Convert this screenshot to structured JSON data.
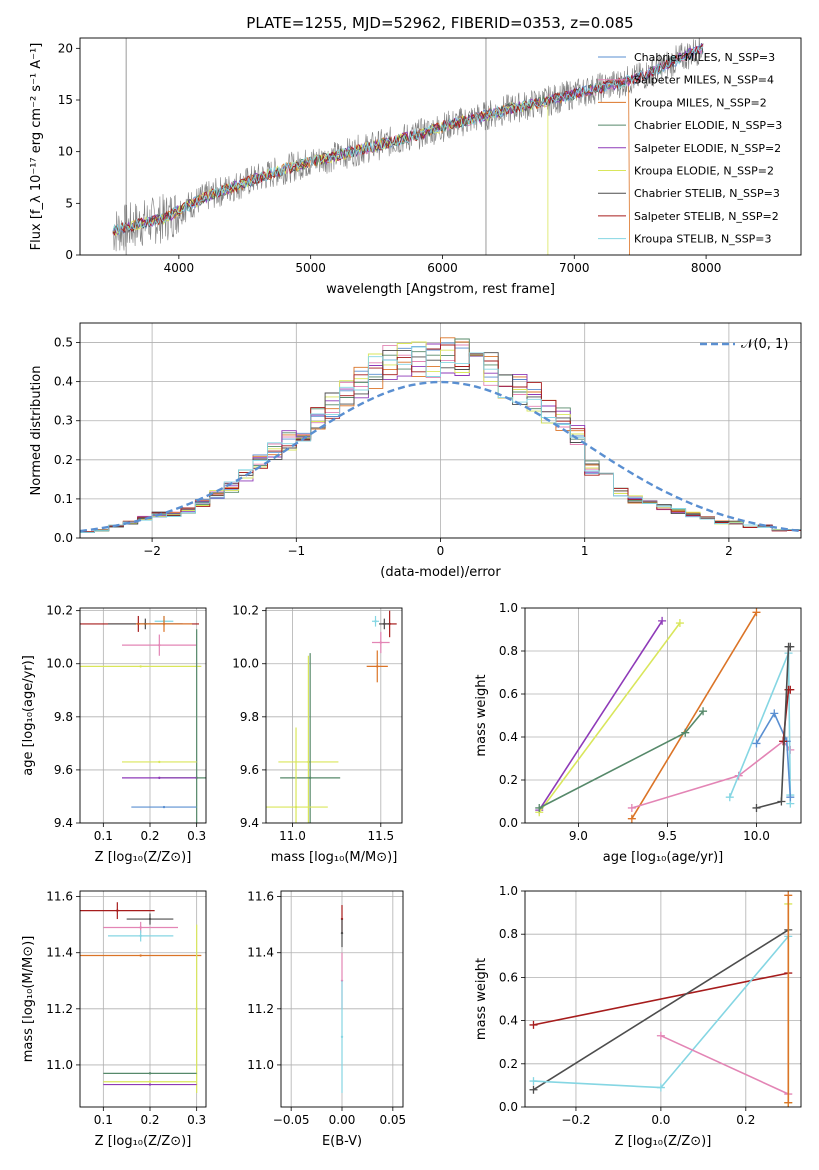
{
  "chart_data": [
    {
      "id": "spectrum",
      "type": "line",
      "title": "PLATE=1255, MJD=52962, FIBERID=0353, z=0.085",
      "xlabel": "wavelength [Angstrom, rest frame]",
      "ylabel": "Flux [f_λ 10⁻¹⁷ erg cm⁻² s⁻¹ A⁻¹]",
      "xlim": [
        3250,
        8720
      ],
      "ylim": [
        0,
        21
      ],
      "xticks": [
        "4000",
        "5000",
        "6000",
        "7000",
        "8000"
      ],
      "yticks": [
        "0",
        "5",
        "10",
        "15",
        "20"
      ],
      "grid": false,
      "legend_position": "right",
      "legend": [
        "Chabrier MILES, N_SSP=3",
        "Salpeter MILES, N_SSP=4",
        "Kroupa MILES, N_SSP=2",
        "Chabrier ELODIE, N_SSP=3",
        "Salpeter ELODIE, N_SSP=2",
        "Kroupa ELODIE, N_SSP=2",
        "Chabrier STELIB, N_SSP=3",
        "Salpeter STELIB, N_SSP=2",
        "Kroupa STELIB, N_SSP=3"
      ],
      "approx_continuum": {
        "x": [
          3500,
          3700,
          3900,
          4000,
          4200,
          4500,
          4800,
          5000,
          5200,
          5500,
          5800,
          6000,
          6300,
          6500,
          6800,
          7000,
          7300,
          7500,
          7800,
          8000
        ],
        "y": [
          2.3,
          3.0,
          3.6,
          4.3,
          5.6,
          7.0,
          8.3,
          9.0,
          9.6,
          10.6,
          11.6,
          12.4,
          13.4,
          14.1,
          14.9,
          15.6,
          16.5,
          17.2,
          19.0,
          20.2
        ]
      }
    },
    {
      "id": "residuals",
      "type": "bar",
      "xlabel": "(data-model)/error",
      "ylabel": "Normed distribution",
      "xlim": [
        -2.5,
        2.5
      ],
      "ylim": [
        0,
        0.55
      ],
      "xticks": [
        "−2",
        "−1",
        "0",
        "1",
        "2"
      ],
      "yticks": [
        "0.0",
        "0.1",
        "0.2",
        "0.3",
        "0.4",
        "0.5"
      ],
      "grid": true,
      "legend": [
        "𝒩(0, 1)"
      ],
      "legend_position": "top-right",
      "bins": [
        -2.5,
        -2.4,
        -2.3,
        -2.2,
        -2.1,
        -2.0,
        -1.9,
        -1.8,
        -1.7,
        -1.6,
        -1.5,
        -1.4,
        -1.3,
        -1.2,
        -1.1,
        -1.0,
        -0.9,
        -0.8,
        -0.7,
        -0.6,
        -0.5,
        -0.4,
        -0.3,
        -0.2,
        -0.1,
        0.0,
        0.1,
        0.2,
        0.3,
        0.4,
        0.5,
        0.6,
        0.7,
        0.8,
        0.9,
        1.0,
        1.1,
        1.2,
        1.3,
        1.4,
        1.5,
        1.6,
        1.7,
        1.8,
        1.9,
        2.0,
        2.1,
        2.2,
        2.3,
        2.4
      ],
      "approx_hist": [
        0.015,
        0.02,
        0.03,
        0.04,
        0.05,
        0.06,
        0.06,
        0.07,
        0.09,
        0.11,
        0.13,
        0.16,
        0.2,
        0.22,
        0.25,
        0.27,
        0.31,
        0.34,
        0.37,
        0.4,
        0.43,
        0.45,
        0.46,
        0.46,
        0.45,
        0.47,
        0.46,
        0.44,
        0.43,
        0.4,
        0.38,
        0.36,
        0.33,
        0.3,
        0.26,
        0.18,
        0.15,
        0.12,
        0.1,
        0.09,
        0.08,
        0.07,
        0.06,
        0.05,
        0.04,
        0.04,
        0.03,
        0.03,
        0.02,
        0.02
      ]
    },
    {
      "id": "age-vs-Z",
      "type": "scatter",
      "xlabel": "Z [log₁₀(Z/Z⊙)]",
      "ylabel": "age  [log₁₀(age/yr)]",
      "xlim": [
        0.05,
        0.32
      ],
      "ylim": [
        9.4,
        10.21
      ],
      "xticks": [
        "0.1",
        "0.2",
        "0.3"
      ],
      "yticks": [
        "9.4",
        "9.6",
        "9.8",
        "10.0",
        "10.2"
      ],
      "grid": true,
      "points": [
        {
          "z": 0.175,
          "age": 10.15,
          "xerr": 0.13,
          "yerr": 0.03
        },
        {
          "z": 0.19,
          "age": 10.15,
          "xerr": 0.08,
          "yerr": 0.02
        },
        {
          "z": 0.22,
          "age": 10.07,
          "xerr": 0.08,
          "yerr": 0.04
        },
        {
          "z": 0.23,
          "age": 10.16,
          "xerr": 0.02,
          "yerr": 0.02
        },
        {
          "z": 0.23,
          "age": 10.15,
          "xerr": 0.06,
          "yerr": 0.03
        },
        {
          "z": 0.18,
          "age": 9.99,
          "xerr": 0.13,
          "yerr": 0.0
        },
        {
          "z": 0.3,
          "age": 9.57,
          "xerr": 0.08,
          "yerr": 0.56
        },
        {
          "z": 0.22,
          "age": 9.63,
          "xerr": 0.08,
          "yerr": 0.0
        },
        {
          "z": 0.22,
          "age": 9.57,
          "xerr": 0.08,
          "yerr": 0.0
        },
        {
          "z": 0.23,
          "age": 9.46,
          "xerr": 0.07,
          "yerr": 0.0
        }
      ]
    },
    {
      "id": "age-vs-mass",
      "type": "scatter",
      "xlabel": "mass [log₁₀(M/M⊙)]",
      "ylabel": "",
      "xlim": [
        10.85,
        11.62
      ],
      "ylim": [
        9.4,
        10.21
      ],
      "xticks": [
        "11.0",
        "11.5"
      ],
      "yticks": [
        "9.4",
        "9.6",
        "9.8",
        "10.0",
        "10.2"
      ],
      "grid": true,
      "points": [
        {
          "mass": 11.55,
          "age": 10.15,
          "xerr": 0.04,
          "yerr": 0.05
        },
        {
          "mass": 11.52,
          "age": 10.15,
          "xerr": 0.03,
          "yerr": 0.02
        },
        {
          "mass": 11.5,
          "age": 10.08,
          "xerr": 0.05,
          "yerr": 0.04
        },
        {
          "mass": 11.47,
          "age": 10.16,
          "xerr": 0.02,
          "yerr": 0.02
        },
        {
          "mass": 11.48,
          "age": 9.99,
          "xerr": 0.06,
          "yerr": 0.06
        },
        {
          "mass": 11.09,
          "age": 9.63,
          "xerr": 0.17,
          "yerr": 0.4
        },
        {
          "mass": 11.1,
          "age": 9.57,
          "xerr": 0.17,
          "yerr": 0.47
        },
        {
          "mass": 11.02,
          "age": 9.46,
          "xerr": 0.18,
          "yerr": 0.3
        }
      ]
    },
    {
      "id": "weight-vs-age",
      "type": "line",
      "xlabel": "age  [log₁₀(age/yr)]",
      "ylabel": "mass weight",
      "xlim": [
        8.7,
        10.25
      ],
      "ylim": [
        0,
        1
      ],
      "xticks": [
        "9.0",
        "9.5",
        "10.0"
      ],
      "yticks": [
        "0.0",
        "0.2",
        "0.4",
        "0.6",
        "0.8",
        "1.0"
      ],
      "grid": true,
      "series": [
        {
          "color": "#8e3ab8",
          "x": [
            8.78,
            9.47
          ],
          "y": [
            0.06,
            0.94
          ]
        },
        {
          "color": "#d9e65b",
          "x": [
            8.78,
            9.57
          ],
          "y": [
            0.05,
            0.93
          ]
        },
        {
          "color": "#db7427",
          "x": [
            9.3,
            10.0
          ],
          "y": [
            0.02,
            0.98
          ]
        },
        {
          "color": "#56896a",
          "x": [
            8.78,
            9.6,
            9.7
          ],
          "y": [
            0.07,
            0.42,
            0.52
          ]
        },
        {
          "color": "#e385b5",
          "x": [
            9.3,
            9.9,
            10.15,
            10.19
          ],
          "y": [
            0.07,
            0.22,
            0.38,
            0.34
          ]
        },
        {
          "color": "#85d6e3",
          "x": [
            9.85,
            10.18,
            10.19,
            10.19
          ],
          "y": [
            0.12,
            0.79,
            0.13,
            0.09
          ]
        },
        {
          "color": "#5a8fd1",
          "x": [
            10.0,
            10.1,
            10.17,
            10.19
          ],
          "y": [
            0.37,
            0.51,
            0.38,
            0.12
          ]
        },
        {
          "color": "#a61c1c",
          "x": [
            10.15,
            10.18,
            10.19
          ],
          "y": [
            0.38,
            0.62,
            0.62
          ]
        },
        {
          "color": "#4d4d4d",
          "x": [
            10.0,
            10.14,
            10.18,
            10.19
          ],
          "y": [
            0.07,
            0.1,
            0.82,
            0.82
          ]
        }
      ]
    },
    {
      "id": "mass-vs-Z",
      "type": "scatter",
      "xlabel": "Z [log₁₀(Z/Z⊙)]",
      "ylabel": "mass [log₁₀(M/M⊙)]",
      "xlim": [
        0.05,
        0.32
      ],
      "ylim": [
        10.85,
        11.62
      ],
      "xticks": [
        "0.1",
        "0.2",
        "0.3"
      ],
      "yticks": [
        "11.0",
        "11.2",
        "11.4",
        "11.6"
      ],
      "grid": true,
      "points": [
        {
          "z": 0.13,
          "mass": 11.55,
          "xerr": 0.08,
          "yerr": 0.03
        },
        {
          "z": 0.2,
          "mass": 11.52,
          "xerr": 0.05,
          "yerr": 0.02
        },
        {
          "z": 0.18,
          "mass": 11.49,
          "xerr": 0.08,
          "yerr": 0.02
        },
        {
          "z": 0.18,
          "mass": 11.46,
          "xerr": 0.07,
          "yerr": 0.02
        },
        {
          "z": 0.18,
          "mass": 11.39,
          "xerr": 0.13,
          "yerr": 0.0
        },
        {
          "z": 0.3,
          "mass": 11.2,
          "xerr": 0.0,
          "yerr": 0.3
        },
        {
          "z": 0.2,
          "mass": 10.97,
          "xerr": 0.1,
          "yerr": 0.0
        },
        {
          "z": 0.2,
          "mass": 10.94,
          "xerr": 0.1,
          "yerr": 0.0
        },
        {
          "z": 0.2,
          "mass": 10.93,
          "xerr": 0.1,
          "yerr": 0.0
        }
      ]
    },
    {
      "id": "mass-vs-ebv",
      "type": "scatter",
      "xlabel": "E(B-V)",
      "ylabel": "",
      "xlim": [
        -0.06,
        0.06
      ],
      "ylim": [
        10.85,
        11.62
      ],
      "xticks": [
        "−0.05",
        "0.00",
        "0.05"
      ],
      "yticks": [
        "11.0",
        "11.2",
        "11.4",
        "11.6"
      ],
      "grid": true,
      "points": [
        {
          "ebv": 0.0,
          "mass": 11.52,
          "yerr": 0.05
        },
        {
          "ebv": 0.0,
          "mass": 11.47,
          "yerr": 0.05
        },
        {
          "ebv": 0.0,
          "mass": 11.3,
          "yerr": 0.1
        },
        {
          "ebv": 0.0,
          "mass": 11.1,
          "yerr": 0.2
        }
      ]
    },
    {
      "id": "weight-vs-Z",
      "type": "line",
      "xlabel": "Z [log₁₀(Z/Z⊙)]",
      "ylabel": "mass weight",
      "xlim": [
        -0.32,
        0.33
      ],
      "ylim": [
        0,
        1
      ],
      "xticks": [
        "−0.2",
        "0.0",
        "0.2"
      ],
      "yticks": [
        "0.0",
        "0.2",
        "0.4",
        "0.6",
        "0.8",
        "1.0"
      ],
      "grid": true,
      "series": [
        {
          "color": "#a61c1c",
          "x": [
            -0.3,
            0.3
          ],
          "y": [
            0.38,
            0.62
          ]
        },
        {
          "color": "#4d4d4d",
          "x": [
            -0.3,
            0.3
          ],
          "y": [
            0.08,
            0.82
          ]
        },
        {
          "color": "#85d6e3",
          "x": [
            -0.3,
            0.0,
            0.3
          ],
          "y": [
            0.12,
            0.09,
            0.79
          ]
        },
        {
          "color": "#e385b5",
          "x": [
            0.0,
            0.3
          ],
          "y": [
            0.33,
            0.06
          ]
        },
        {
          "color": "#d9e65b",
          "x": [
            0.3,
            0.3
          ],
          "y": [
            0.02,
            0.94
          ]
        },
        {
          "color": "#db7427",
          "x": [
            0.3,
            0.3
          ],
          "y": [
            0.02,
            0.98
          ]
        }
      ]
    }
  ],
  "colors": {
    "chabrier_miles": "#5a8fd1",
    "salpeter_miles": "#e385b5",
    "kroupa_miles": "#db7427",
    "chabrier_elodie": "#56896a",
    "salpeter_elodie": "#8e3ab8",
    "kroupa_elodie": "#d9e65b",
    "chabrier_stelib": "#4d4d4d",
    "salpeter_stelib": "#a61c1c",
    "kroupa_stelib": "#85d6e3",
    "data": "#808080",
    "gaussian": "#5a8fd1"
  }
}
